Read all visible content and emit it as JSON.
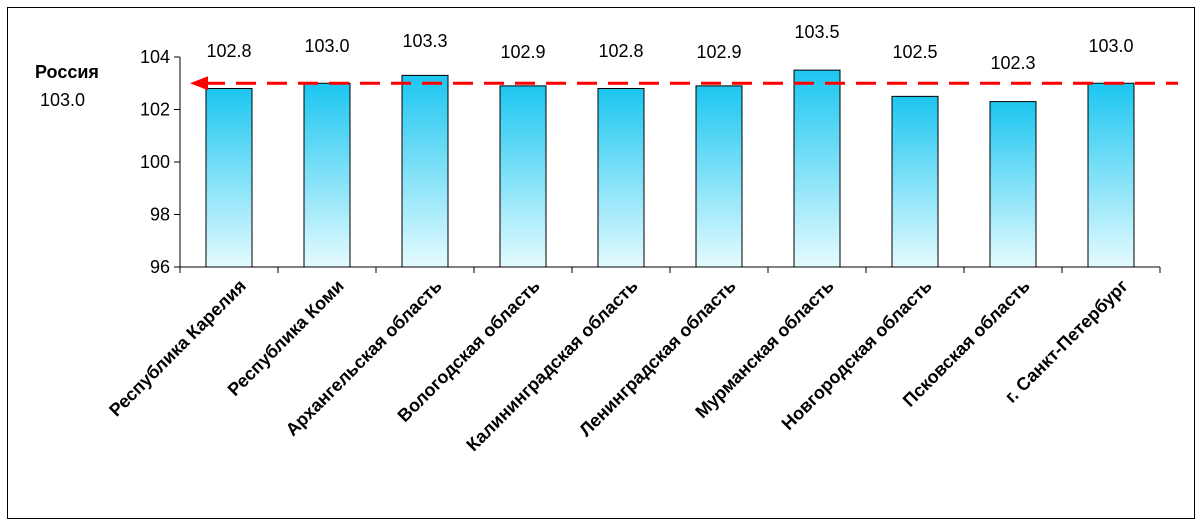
{
  "chart_data": {
    "type": "bar",
    "title": "",
    "xlabel": "",
    "ylabel": "",
    "categories": [
      "Республика Карелия",
      "Республика Коми",
      "Архангельская область",
      "Вологодская область",
      "Калининградская область",
      "Ленинградская область",
      "Мурманская область",
      "Новгородская область",
      "Псковская область",
      "г. Санкт-Петербург"
    ],
    "values": [
      102.8,
      103.0,
      103.3,
      102.9,
      102.8,
      102.9,
      103.5,
      102.5,
      102.3,
      103.0
    ],
    "value_labels": [
      "102.8",
      "103.0",
      "103.3",
      "102.9",
      "102.8",
      "102.9",
      "103.5",
      "102.5",
      "102.3",
      "103.0"
    ],
    "ylim": [
      96,
      104
    ],
    "yticks": [
      96,
      98,
      100,
      102,
      104
    ],
    "ytick_labels": [
      "96",
      "98",
      "100",
      "102",
      "104"
    ],
    "grid": false,
    "legend": "none",
    "reference_line": {
      "label": "Россия",
      "value": 103.0,
      "value_label": "103.0",
      "style": "dashed",
      "color": "#ff0000"
    },
    "colors": {
      "bar_top": "#1cc6f0",
      "bar_bottom": "#e4fbff",
      "bar_outline": "#000000",
      "axis": "#000000"
    }
  }
}
